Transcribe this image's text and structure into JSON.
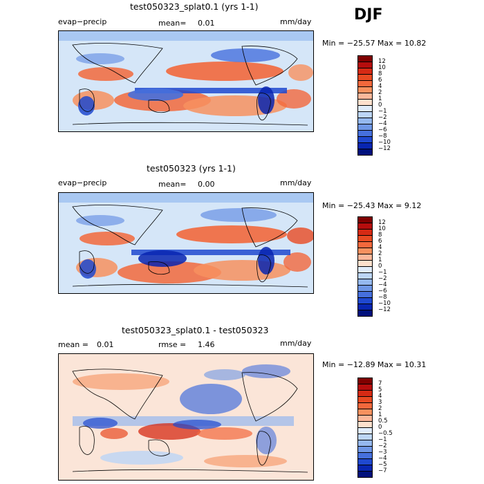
{
  "season": "DJF",
  "units": "mm/day",
  "variable": "evap−precip",
  "panels": [
    {
      "title": "test050323_splat0.1 (yrs 1-1)",
      "left_label": "evap−precip",
      "mean_text": "mean=",
      "mean_value": "0.01",
      "units": "mm/day",
      "minmax": "Min = −25.57 Max =  10.82",
      "colorbar": [
        "12",
        "10",
        "8",
        "6",
        "4",
        "2",
        "1",
        "0",
        "−1",
        "−2",
        "−4",
        "−6",
        "−8",
        "−10",
        "−12"
      ]
    },
    {
      "title": "test050323 (yrs 1-1)",
      "left_label": "evap−precip",
      "mean_text": "mean=",
      "mean_value": "0.00",
      "units": "mm/day",
      "minmax": "Min = −25.43 Max =   9.12",
      "colorbar": [
        "12",
        "10",
        "8",
        "6",
        "4",
        "2",
        "1",
        "0",
        "−1",
        "−2",
        "−4",
        "−6",
        "−8",
        "−10",
        "−12"
      ]
    },
    {
      "title": "test050323_splat0.1 - test050323",
      "mean_text": "mean =",
      "mean_value": "0.01",
      "rmse_text": "rmse =",
      "rmse_value": "1.46",
      "units": "mm/day",
      "minmax": "Min = −12.89 Max =  10.31",
      "colorbar": [
        "7",
        "5",
        "4",
        "3",
        "2",
        "1",
        "0.5",
        "0",
        "−0.5",
        "−1",
        "−2",
        "−3",
        "−4",
        "−5",
        "−7"
      ]
    }
  ],
  "colors": {
    "palette": [
      "#800000",
      "#b50d0d",
      "#d62a14",
      "#e84a22",
      "#f2683c",
      "#f7915f",
      "#fbb79a",
      "#fde0cd",
      "#e0ecfb",
      "#bcd5f6",
      "#95b8ef",
      "#6e96e6",
      "#4670dd",
      "#1f48cf",
      "#0825b0",
      "#00107c"
    ]
  },
  "chart_data": [
    {
      "type": "heatmap",
      "title": "test050323_splat0.1 (yrs 1-1)",
      "variable": "evap−precip",
      "units": "mm/day",
      "mean": 0.01,
      "min": -25.57,
      "max": 10.82,
      "contour_levels": [
        -12,
        -10,
        -8,
        -6,
        -4,
        -2,
        -1,
        0,
        1,
        2,
        4,
        6,
        8,
        10,
        12
      ]
    },
    {
      "type": "heatmap",
      "title": "test050323 (yrs 1-1)",
      "variable": "evap−precip",
      "units": "mm/day",
      "mean": 0.0,
      "min": -25.43,
      "max": 9.12,
      "contour_levels": [
        -12,
        -10,
        -8,
        -6,
        -4,
        -2,
        -1,
        0,
        1,
        2,
        4,
        6,
        8,
        10,
        12
      ]
    },
    {
      "type": "heatmap",
      "title": "test050323_splat0.1 - test050323",
      "units": "mm/day",
      "mean": 0.01,
      "rmse": 1.46,
      "min": -12.89,
      "max": 10.31,
      "contour_levels": [
        -7,
        -5,
        -4,
        -3,
        -2,
        -1,
        -0.5,
        0,
        0.5,
        1,
        2,
        3,
        4,
        5,
        7
      ]
    }
  ]
}
